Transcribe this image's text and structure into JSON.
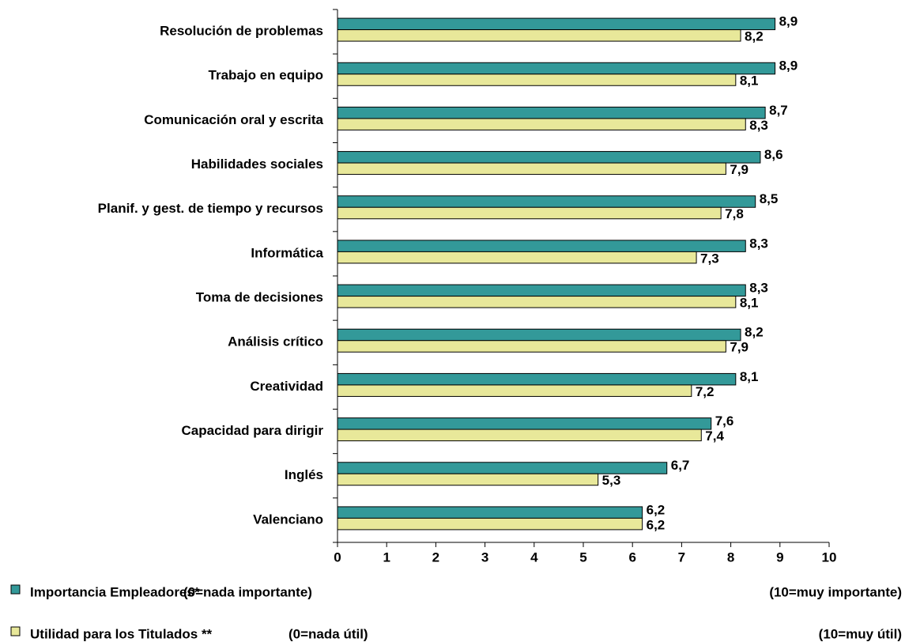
{
  "chart_data": {
    "type": "hbar",
    "categories": [
      "Resolución de problemas",
      "Trabajo en equipo",
      "Comunicación oral y escrita",
      "Habilidades sociales",
      "Planif. y gest. de tiempo y recursos",
      "Informática",
      "Toma de decisiones",
      "Análisis crítico",
      "Creatividad",
      "Capacidad para dirigir",
      "Inglés",
      "Valenciano"
    ],
    "series": [
      {
        "name": "Importancia Empleadores*",
        "color": "#339999",
        "low_label": "(0=nada importante)",
        "high_label": "(10=muy importante)",
        "values": [
          8.9,
          8.9,
          8.7,
          8.6,
          8.5,
          8.3,
          8.3,
          8.2,
          8.1,
          7.6,
          6.7,
          6.2
        ],
        "value_labels": [
          "8,9",
          "8,9",
          "8,7",
          "8,6",
          "8,5",
          "8,3",
          "8,3",
          "8,2",
          "8,1",
          "7,6",
          "6,7",
          "6,2"
        ]
      },
      {
        "name": "Utilidad para los Titulados **",
        "color": "#E8E89A",
        "low_label": "(0=nada útil)",
        "high_label": "(10=muy útil)",
        "values": [
          8.2,
          8.1,
          8.3,
          7.9,
          7.8,
          7.3,
          8.1,
          7.9,
          7.2,
          7.4,
          5.3,
          6.2
        ],
        "value_labels": [
          "8,2",
          "8,1",
          "8,3",
          "7,9",
          "7,8",
          "7,3",
          "8,1",
          "7,9",
          "7,2",
          "7,4",
          "5,3",
          "6,2"
        ]
      }
    ],
    "xlim": [
      0,
      10
    ],
    "xticks": [
      0,
      1,
      2,
      3,
      4,
      5,
      6,
      7,
      8,
      9,
      10
    ],
    "legend": "bottom"
  }
}
